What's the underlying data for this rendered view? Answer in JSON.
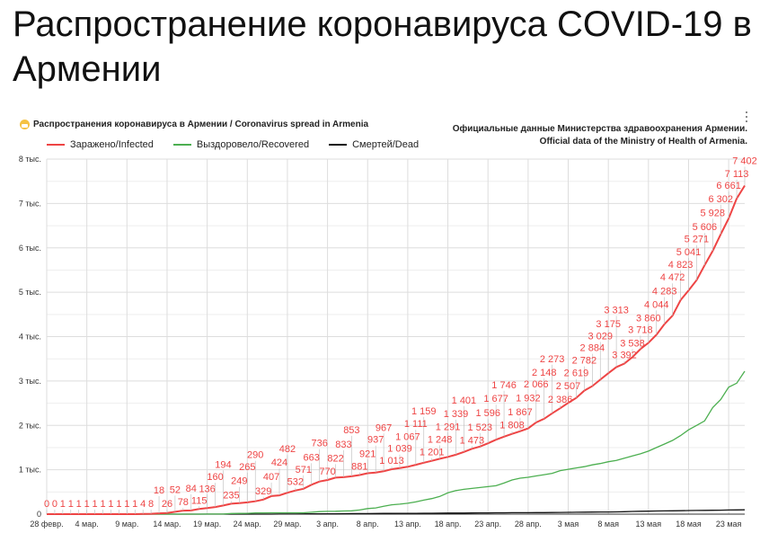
{
  "page_title": "Распространение коронавируса COVID-19 в Армении",
  "chart_header": {
    "title": "Распространения коронавируса в Армении / Coronavirus spread in Armenia",
    "title_icon": "face-with-mask-icon",
    "source_line1": "Официальные данные Министерства здравоохранения Армении.",
    "source_line2": "Official data of the Ministry of Health of Armenia.",
    "menu_icon": "more-vertical-icon"
  },
  "chart_data": {
    "type": "line",
    "title": "Распространения коронавируса в Армении / Coronavirus spread in Armenia",
    "x_start": "2020-02-28",
    "x_end": "2020-05-25",
    "x_tick_labels": [
      "28 февр.",
      "4 мар.",
      "9 мар.",
      "14 мар.",
      "19 мар.",
      "24 мар.",
      "29 мар.",
      "3 апр.",
      "8 апр.",
      "13 апр.",
      "18 апр.",
      "23 апр.",
      "28 апр.",
      "3 мая",
      "8 мая",
      "13 мая",
      "18 мая",
      "23 мая"
    ],
    "y_tick_labels": [
      "0",
      "1 тыс.",
      "2 тыс.",
      "3 тыс.",
      "4 тыс.",
      "5 тыс.",
      "6 тыс.",
      "7 тыс.",
      "8 тыс."
    ],
    "ylim": [
      0,
      8000
    ],
    "grid": true,
    "legend_position": "top-left",
    "data_labels_series": "Заражено/Infected",
    "series": [
      {
        "name": "Заражено/Infected",
        "color": "#ee4444",
        "values": [
          0,
          0,
          1,
          1,
          1,
          1,
          1,
          1,
          1,
          1,
          1,
          1,
          4,
          8,
          18,
          26,
          52,
          78,
          84,
          115,
          136,
          160,
          194,
          235,
          249,
          265,
          290,
          329,
          407,
          424,
          482,
          532,
          571,
          663,
          736,
          770,
          822,
          833,
          853,
          881,
          921,
          937,
          967,
          1013,
          1039,
          1067,
          1111,
          1159,
          1201,
          1248,
          1291,
          1339,
          1401,
          1473,
          1523,
          1596,
          1677,
          1746,
          1808,
          1867,
          1932,
          2066,
          2148,
          2273,
          2386,
          2507,
          2619,
          2782,
          2884,
          3029,
          3175,
          3313,
          3392,
          3538,
          3718,
          3860,
          4044,
          4283,
          4472,
          4823,
          5041,
          5271,
          5606,
          5928,
          6302,
          6661,
          7113,
          7402
        ]
      },
      {
        "name": "Выздоровело/Recovered",
        "color": "#4caf50",
        "values": [
          0,
          0,
          0,
          0,
          0,
          0,
          0,
          0,
          0,
          0,
          0,
          0,
          0,
          0,
          0,
          0,
          0,
          1,
          1,
          1,
          2,
          2,
          3,
          14,
          16,
          18,
          28,
          28,
          30,
          31,
          31,
          31,
          31,
          43,
          57,
          62,
          64,
          70,
          74,
          93,
          125,
          140,
          176,
          210,
          225,
          245,
          275,
          315,
          350,
          400,
          480,
          530,
          560,
          580,
          600,
          620,
          640,
          700,
          770,
          810,
          830,
          860,
          890,
          920,
          980,
          1010,
          1040,
          1070,
          1110,
          1140,
          1180,
          1210,
          1260,
          1310,
          1360,
          1420,
          1500,
          1580,
          1660,
          1770,
          1900,
          2000,
          2100,
          2400,
          2580,
          2860,
          2950,
          3220
        ]
      },
      {
        "name": "Смертей/Dead",
        "color": "#111111",
        "values": [
          0,
          0,
          0,
          0,
          0,
          0,
          0,
          0,
          0,
          0,
          0,
          0,
          0,
          0,
          0,
          0,
          0,
          0,
          0,
          0,
          0,
          0,
          0,
          0,
          0,
          0,
          0,
          1,
          1,
          3,
          3,
          3,
          4,
          7,
          7,
          8,
          9,
          10,
          12,
          12,
          13,
          14,
          16,
          17,
          18,
          18,
          19,
          20,
          20,
          22,
          24,
          24,
          24,
          27,
          28,
          28,
          30,
          30,
          32,
          33,
          33,
          35,
          35,
          36,
          39,
          40,
          43,
          44,
          46,
          48,
          49,
          50,
          55,
          60,
          64,
          67,
          70,
          73,
          75,
          77,
          80,
          83,
          85,
          88,
          90,
          93,
          95,
          98
        ]
      }
    ]
  }
}
